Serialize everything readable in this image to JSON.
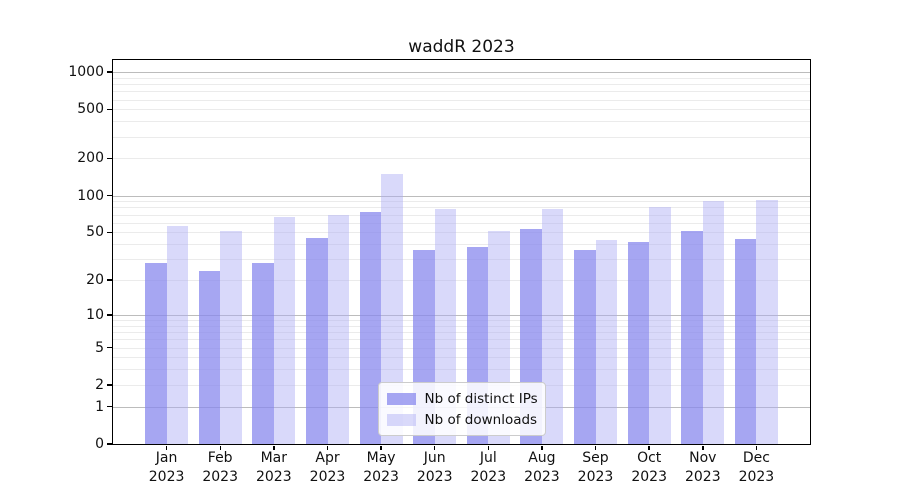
{
  "header": {
    "title": "waddR 2023"
  },
  "chart_data": {
    "type": "bar",
    "title": "waddR 2023",
    "categories": [
      "Jan 2023",
      "Feb 2023",
      "Mar 2023",
      "Apr 2023",
      "May 2023",
      "Jun 2023",
      "Jul 2023",
      "Aug 2023",
      "Sep 2023",
      "Oct 2023",
      "Nov 2023",
      "Dec 2023"
    ],
    "series": [
      {
        "name": "Nb of distinct IPs",
        "values": [
          28,
          24,
          28,
          45,
          73,
          36,
          38,
          53,
          36,
          42,
          51,
          44
        ],
        "color": "#a6a6f2",
        "fill": "rgba(136,136,238,0.75)"
      },
      {
        "name": "Nb of downloads",
        "values": [
          56,
          51,
          67,
          70,
          150,
          78,
          51,
          78,
          43,
          81,
          90,
          92
        ],
        "color": "#d9d9f8",
        "fill": "rgba(171,171,245,0.45)"
      }
    ],
    "yscale": "log1p",
    "yticks": [
      0,
      1,
      2,
      5,
      10,
      20,
      50,
      100,
      200,
      500,
      1000
    ],
    "ylim": [
      0,
      1250
    ],
    "xlabel": "",
    "ylabel": "",
    "grid": "horizontal",
    "legend_position": "lower center"
  },
  "colors": {
    "background": "#ffffff",
    "grid_major": "#bcbcbc",
    "grid_minor": "#ebebeb",
    "spine": "#000000",
    "text": "#111111"
  }
}
